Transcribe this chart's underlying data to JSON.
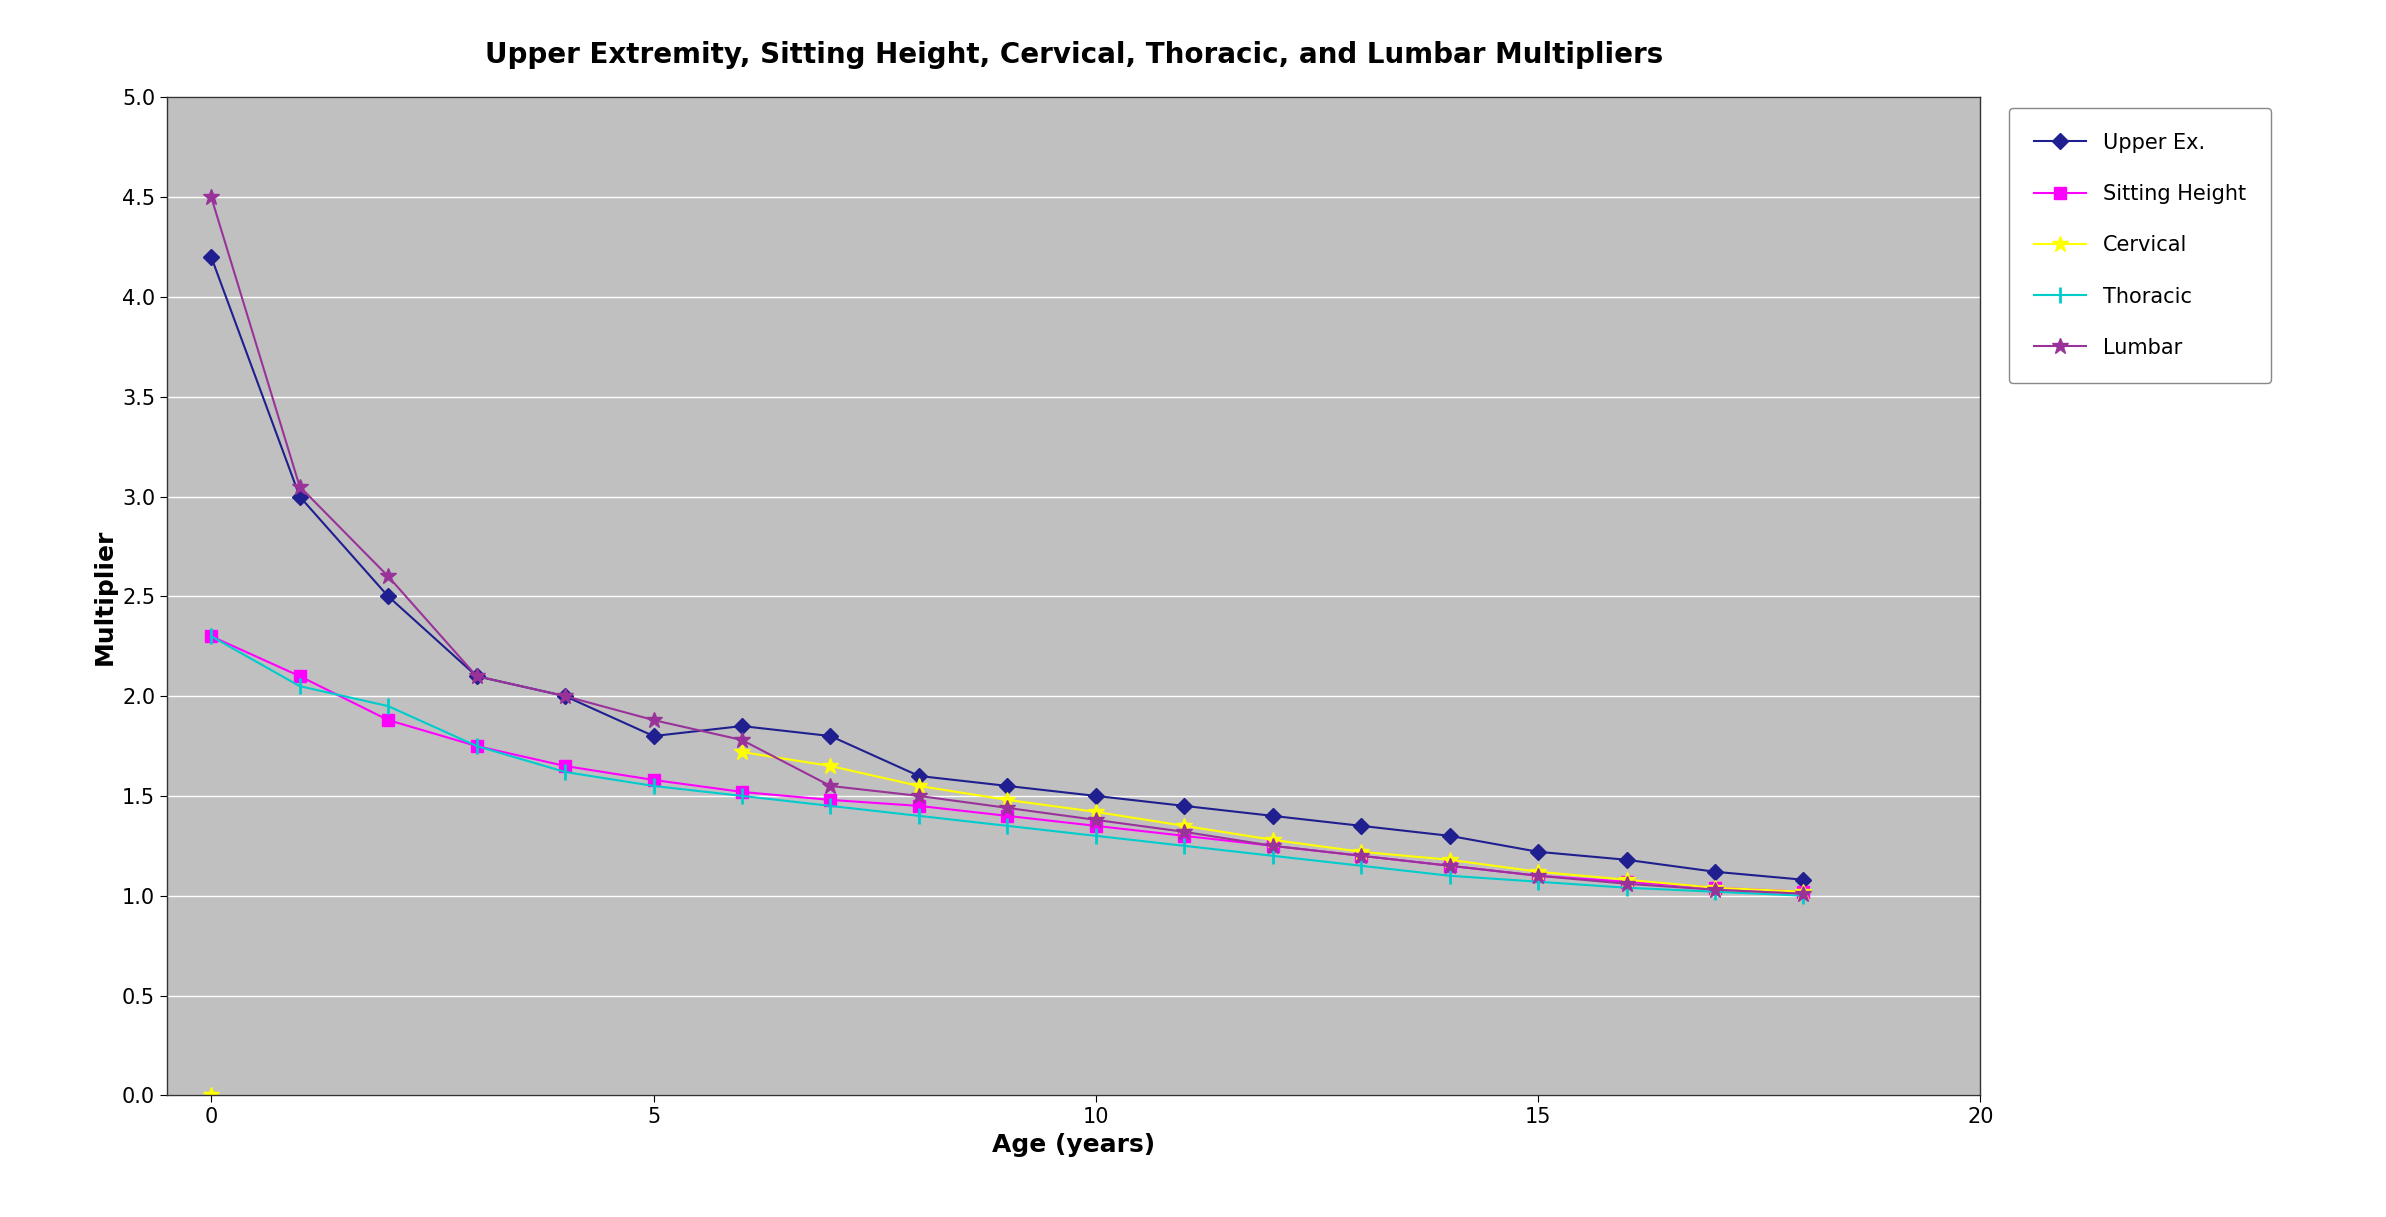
{
  "title": "Upper Extremity, Sitting Height, Cervical, Thoracic, and Lumbar Multipliers",
  "xlabel": "Age (years)",
  "ylabel": "Multiplier",
  "xlim": [
    -0.5,
    20
  ],
  "ylim": [
    0,
    5
  ],
  "yticks": [
    0,
    0.5,
    1,
    1.5,
    2,
    2.5,
    3,
    3.5,
    4,
    4.5,
    5
  ],
  "xticks": [
    0,
    5,
    10,
    15,
    20
  ],
  "background_color": "#c0c0c0",
  "outer_background": "#d9d9d9",
  "fig_background": "#ffffff",
  "series": {
    "Upper Ex.": {
      "color": "#1f1f8f",
      "marker": "D",
      "markersize": 8,
      "linewidth": 1.5,
      "x": [
        0,
        1,
        2,
        3,
        4,
        5,
        6,
        7,
        8,
        9,
        10,
        11,
        12,
        13,
        14,
        15,
        16,
        17,
        18
      ],
      "y": [
        4.2,
        3.0,
        2.5,
        2.1,
        2.0,
        1.8,
        1.85,
        1.8,
        1.6,
        1.55,
        1.5,
        1.45,
        1.4,
        1.35,
        1.3,
        1.22,
        1.18,
        1.12,
        1.08
      ]
    },
    "Sitting Height": {
      "color": "#ff00ff",
      "marker": "s",
      "markersize": 9,
      "linewidth": 1.5,
      "x": [
        0,
        1,
        2,
        3,
        4,
        5,
        6,
        7,
        8,
        9,
        10,
        11,
        12,
        13,
        14,
        15,
        16,
        17,
        18
      ],
      "y": [
        2.3,
        2.1,
        1.88,
        1.75,
        1.65,
        1.58,
        1.52,
        1.48,
        1.45,
        1.4,
        1.35,
        1.3,
        1.25,
        1.2,
        1.15,
        1.1,
        1.07,
        1.04,
        1.02
      ]
    },
    "Cervical": {
      "color": "#ffff00",
      "marker": "*",
      "markersize": 12,
      "linewidth": 1.5,
      "x_isolated": [
        0
      ],
      "y_isolated": [
        0
      ],
      "x": [
        6,
        7,
        8,
        9,
        10,
        11,
        12,
        13,
        14,
        15,
        16,
        17,
        18
      ],
      "y": [
        1.72,
        1.65,
        1.55,
        1.48,
        1.42,
        1.35,
        1.28,
        1.22,
        1.18,
        1.12,
        1.08,
        1.04,
        1.02
      ]
    },
    "Thoracic": {
      "color": "#00cccc",
      "marker": "+",
      "markersize": 11,
      "linewidth": 1.5,
      "x": [
        0,
        1,
        2,
        3,
        4,
        5,
        6,
        7,
        8,
        9,
        10,
        11,
        12,
        13,
        14,
        15,
        16,
        17,
        18
      ],
      "y": [
        2.3,
        2.05,
        1.95,
        1.75,
        1.62,
        1.55,
        1.5,
        1.45,
        1.4,
        1.35,
        1.3,
        1.25,
        1.2,
        1.15,
        1.1,
        1.07,
        1.04,
        1.02,
        1.0
      ]
    },
    "Lumbar": {
      "color": "#993399",
      "marker": "*",
      "markersize": 12,
      "linewidth": 1.5,
      "x": [
        0,
        1,
        2,
        3,
        4,
        5,
        6,
        7,
        8,
        9,
        10,
        11,
        12,
        13,
        14,
        15,
        16,
        17,
        18
      ],
      "y": [
        4.5,
        3.05,
        2.6,
        2.1,
        2.0,
        1.88,
        1.78,
        1.55,
        1.5,
        1.44,
        1.38,
        1.32,
        1.25,
        1.2,
        1.15,
        1.1,
        1.06,
        1.03,
        1.01
      ]
    }
  },
  "legend_order": [
    "Upper Ex.",
    "Sitting Height",
    "Cervical",
    "Thoracic",
    "Lumbar"
  ]
}
